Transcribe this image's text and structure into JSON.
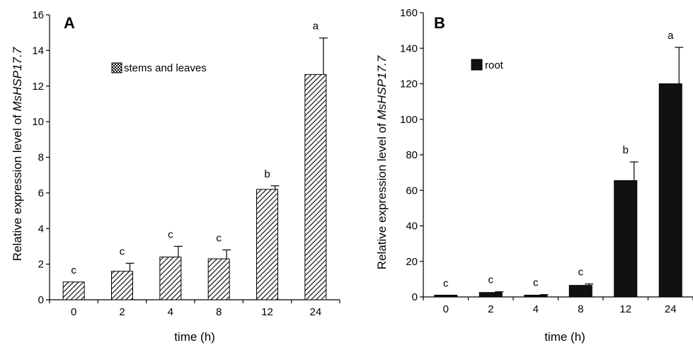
{
  "chart_data": [
    {
      "type": "bar",
      "panel_label": "A",
      "categories": [
        "0",
        "2",
        "4",
        "8",
        "12",
        "24"
      ],
      "series": [
        {
          "name": "stems and leaves",
          "values": [
            1.0,
            1.6,
            2.4,
            2.3,
            6.2,
            12.65
          ],
          "error": [
            0.0,
            0.45,
            0.6,
            0.5,
            0.2,
            2.05
          ],
          "significance": [
            "c",
            "c",
            "c",
            "c",
            "b",
            "a"
          ],
          "fill": "hatched"
        }
      ],
      "xlabel": "time (h)",
      "ylabel_prefix": "Relative expression level of ",
      "ylabel_gene": "MsHSP17.7",
      "ylim": [
        0,
        16
      ],
      "yticks": [
        "0",
        "2",
        "4",
        "6",
        "8",
        "10",
        "12",
        "14",
        "16"
      ],
      "grid": false,
      "legend_position": "top-left"
    },
    {
      "type": "bar",
      "panel_label": "B",
      "categories": [
        "0",
        "2",
        "4",
        "8",
        "12",
        "24"
      ],
      "series": [
        {
          "name": "root",
          "values": [
            1.0,
            2.5,
            1.0,
            6.5,
            65.5,
            120.0
          ],
          "error": [
            0.0,
            0.4,
            0.3,
            0.8,
            10.5,
            20.5
          ],
          "significance": [
            "c",
            "c",
            "c",
            "c",
            "b",
            "a"
          ],
          "fill": "solid"
        }
      ],
      "xlabel": "time (h)",
      "ylabel_prefix": "Relative expression level of ",
      "ylabel_gene": "MsHSP17.7",
      "ylim": [
        0,
        160
      ],
      "yticks": [
        "0",
        "20",
        "40",
        "60",
        "80",
        "100",
        "120",
        "140",
        "160"
      ],
      "grid": false,
      "legend_position": "top-left"
    }
  ],
  "colors": {
    "axis": "#000000",
    "bar_solid": "#111111",
    "bar_hatch": "#000000",
    "background": "#ffffff"
  }
}
